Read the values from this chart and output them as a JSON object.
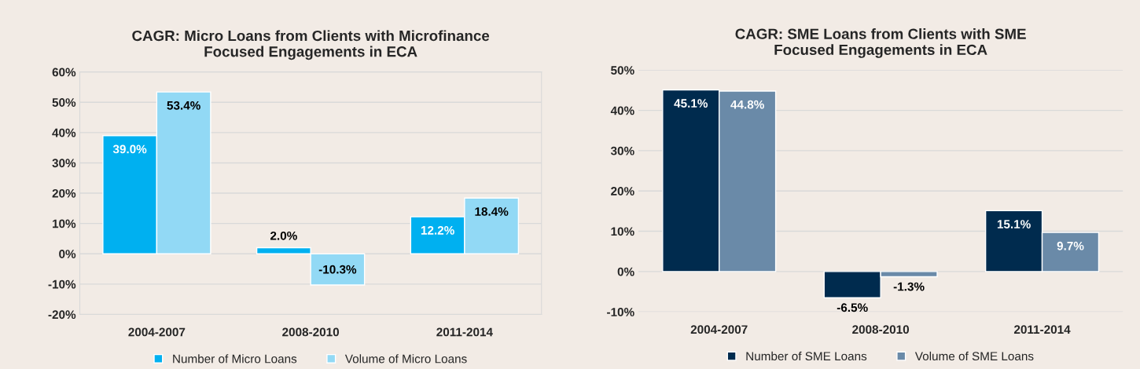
{
  "chart_data": [
    {
      "type": "bar",
      "title": "CAGR: Micro Loans from Clients with Microfinance\nFocused Engagements in ECA",
      "categories": [
        "2004-2007",
        "2008-2010",
        "2011-2014"
      ],
      "series": [
        {
          "name": "Number of Micro Loans",
          "color": "#00b0f0",
          "values": [
            39.0,
            2.0,
            12.2
          ],
          "value_labels": [
            "39.0%",
            "2.0%",
            "12.2%"
          ]
        },
        {
          "name": "Volume of Micro Loans",
          "color": "#92d9f5",
          "values": [
            53.4,
            -10.3,
            18.4
          ],
          "value_labels": [
            "53.4%",
            "-10.3%",
            "18.4%"
          ]
        }
      ],
      "ylim": [
        -20,
        60
      ],
      "yticks": [
        {
          "value": -20,
          "label": "-20%"
        },
        {
          "value": -10,
          "label": "-10%"
        },
        {
          "value": 0,
          "label": "0%"
        },
        {
          "value": 10,
          "label": "10%"
        },
        {
          "value": 20,
          "label": "20%"
        },
        {
          "value": 30,
          "label": "30%"
        },
        {
          "value": 40,
          "label": "40%"
        },
        {
          "value": 50,
          "label": "50%"
        },
        {
          "value": 60,
          "label": "60%"
        }
      ],
      "grid": "y",
      "legend": "bottom"
    },
    {
      "type": "bar",
      "title": "CAGR: SME Loans from Clients with SME\nFocused Engagements in ECA",
      "categories": [
        "2004-2007",
        "2008-2010",
        "2011-2014"
      ],
      "series": [
        {
          "name": "Number of SME Loans",
          "color": "#002b4e",
          "values": [
            45.1,
            -6.5,
            15.1
          ],
          "value_labels": [
            "45.1%",
            "-6.5%",
            "15.1%"
          ]
        },
        {
          "name": "Volume of SME Loans",
          "color": "#6a8aa8",
          "values": [
            44.8,
            -1.3,
            9.7
          ],
          "value_labels": [
            "44.8%",
            "-1.3%",
            "9.7%"
          ]
        }
      ],
      "ylim": [
        -10,
        50
      ],
      "yticks": [
        {
          "value": -10,
          "label": "-10%"
        },
        {
          "value": 0,
          "label": "0%"
        },
        {
          "value": 10,
          "label": "10%"
        },
        {
          "value": 20,
          "label": "20%"
        },
        {
          "value": 30,
          "label": "30%"
        },
        {
          "value": 40,
          "label": "40%"
        },
        {
          "value": 50,
          "label": "50%"
        }
      ],
      "grid": "y",
      "legend": "bottom"
    }
  ]
}
